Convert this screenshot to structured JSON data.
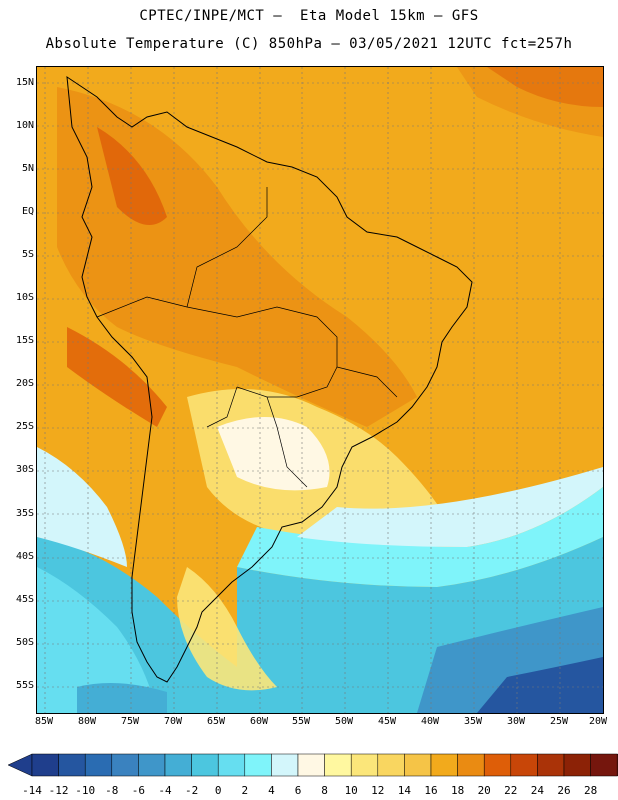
{
  "title_line1": "CPTEC/INPE/MCT –  Eta Model 15km – GFS",
  "title_line2": "Absolute Temperature (C) 850hPa – 03/05/2021 12UTC fct=257h",
  "lat_labels": [
    "15N",
    "10N",
    "5N",
    "EQ",
    "5S",
    "10S",
    "15S",
    "20S",
    "25S",
    "30S",
    "35S",
    "40S",
    "45S",
    "50S",
    "55S"
  ],
  "lon_labels": [
    "85W",
    "80W",
    "75W",
    "70W",
    "65W",
    "60W",
    "55W",
    "50W",
    "45W",
    "40W",
    "35W",
    "30W",
    "25W",
    "20W"
  ],
  "colorbar": {
    "labels": [
      "-14",
      "-12",
      "-10",
      "-8",
      "-6",
      "-4",
      "-2",
      "0",
      "2",
      "4",
      "6",
      "8",
      "10",
      "12",
      "14",
      "16",
      "18",
      "20",
      "22",
      "24",
      "26",
      "28"
    ],
    "colors": [
      "#1f3e8c",
      "#2556a0",
      "#2a6cb2",
      "#3a82bf",
      "#3f96c9",
      "#44aed5",
      "#4cc6df",
      "#66def0",
      "#7ff4fa",
      "#d3f6fb",
      "#fff8e4",
      "#fff8a0",
      "#fbe67a",
      "#f9d660",
      "#f5c447",
      "#f2aa1c",
      "#ea8b12",
      "#de5e08",
      "#c84608",
      "#aa3308",
      "#8c2206",
      "#75160d"
    ]
  }
}
